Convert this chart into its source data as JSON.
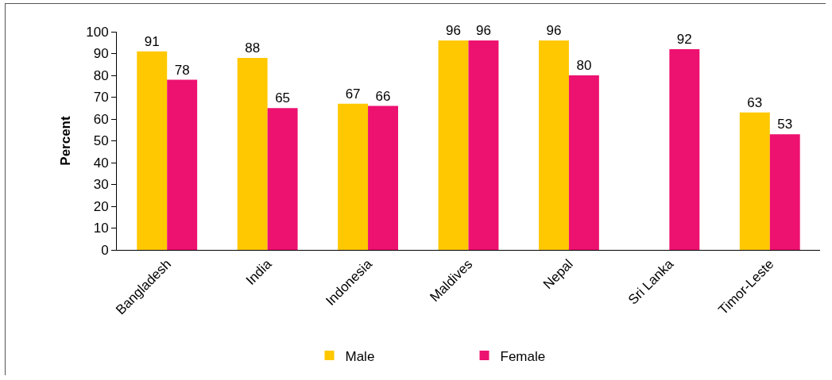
{
  "chart_data": {
    "type": "bar",
    "ylabel": "Percent",
    "categories": [
      "Bangladesh",
      "India",
      "Indonesia",
      "Maldives",
      "Nepal",
      "Sri Lanka",
      "Timor-Leste"
    ],
    "series": [
      {
        "name": "Male",
        "color": "#ffc800",
        "values": [
          91,
          88,
          67,
          96,
          96,
          null,
          63
        ]
      },
      {
        "name": "Female",
        "color": "#ed1170",
        "values": [
          78,
          65,
          66,
          96,
          80,
          92,
          53
        ]
      }
    ],
    "ylim": [
      0,
      100
    ],
    "yticks": [
      0,
      10,
      20,
      30,
      40,
      50,
      60,
      70,
      80,
      90,
      100
    ],
    "grid": false,
    "legend": "bottom",
    "data_labels": true
  }
}
